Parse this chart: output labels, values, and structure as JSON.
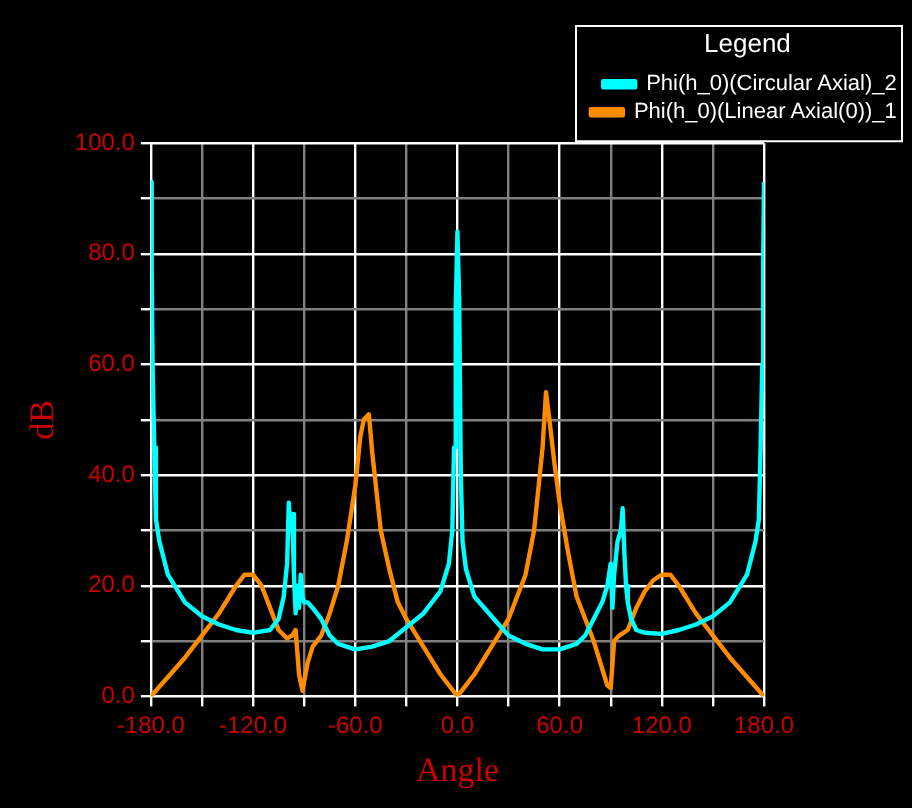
{
  "chart_data": {
    "type": "line",
    "xlabel": "Angle",
    "ylabel": "dB",
    "legend_title": "Legend",
    "legend": "top right",
    "grid": true,
    "marker": "none",
    "line_style": "solid",
    "xlim": [
      -180,
      180
    ],
    "ylim": [
      0,
      100
    ],
    "xticks": [
      {
        "value": -180,
        "label": "-180.0"
      },
      {
        "value": -150,
        "label": null
      },
      {
        "value": -120,
        "label": "-120.0"
      },
      {
        "value": -90,
        "label": null
      },
      {
        "value": -60,
        "label": "-60.0"
      },
      {
        "value": -30,
        "label": null
      },
      {
        "value": 0,
        "label": "0.0"
      },
      {
        "value": 30,
        "label": null
      },
      {
        "value": 60,
        "label": "60.0"
      },
      {
        "value": 90,
        "label": null
      },
      {
        "value": 120,
        "label": "120.0"
      },
      {
        "value": 150,
        "label": null
      },
      {
        "value": 180,
        "label": "180.0"
      }
    ],
    "yticks": [
      {
        "value": 0,
        "label": "0.0"
      },
      {
        "value": 10,
        "label": null
      },
      {
        "value": 20,
        "label": "20.0"
      },
      {
        "value": 30,
        "label": null
      },
      {
        "value": 40,
        "label": "40.0"
      },
      {
        "value": 50,
        "label": null
      },
      {
        "value": 60,
        "label": "60.0"
      },
      {
        "value": 70,
        "label": null
      },
      {
        "value": 80,
        "label": "80.0"
      },
      {
        "value": 90,
        "label": null
      },
      {
        "value": 100,
        "label": "100.0"
      }
    ],
    "series": [
      {
        "name": "Phi(h_0)(Circular Axial)_2",
        "color": "#00ffff",
        "x": [
          -180,
          -179.5,
          -179,
          -178,
          -177,
          -175,
          -170,
          -160,
          -150,
          -140,
          -130,
          -120,
          -110,
          -105,
          -102,
          -100,
          -99,
          -98,
          -97,
          -96,
          -95,
          -94,
          -93,
          -92,
          -91,
          -90,
          -88,
          -85,
          -80,
          -75,
          -70,
          -60,
          -50,
          -40,
          -30,
          -20,
          -10,
          -5,
          -3,
          -2,
          -1,
          0,
          1,
          2,
          3,
          5,
          10,
          20,
          30,
          40,
          50,
          60,
          70,
          75,
          80,
          85,
          88,
          90,
          91,
          92,
          94,
          96,
          97,
          98,
          99,
          100,
          102,
          105,
          110,
          120,
          130,
          140,
          150,
          160,
          170,
          175,
          177,
          178,
          179,
          179.5,
          180
        ],
        "values": [
          93,
          78,
          60,
          45,
          32,
          28,
          22,
          17,
          14.5,
          13,
          12,
          11.5,
          12,
          14,
          18,
          24,
          35,
          30,
          33,
          22,
          15,
          20,
          16,
          22,
          18,
          17,
          17,
          16,
          14,
          11,
          9.5,
          8.5,
          9,
          10,
          12.5,
          15,
          19,
          24,
          30,
          45,
          70,
          84,
          72,
          40,
          28,
          23,
          18,
          14.5,
          11,
          9.5,
          8.5,
          8.5,
          9.5,
          11,
          14,
          17,
          20,
          24,
          16,
          22,
          28,
          30,
          34,
          26,
          20,
          17,
          14,
          12,
          11.5,
          11.3,
          12,
          13,
          14.5,
          17,
          22,
          28,
          32,
          45,
          60,
          78,
          93
        ]
      },
      {
        "name": "Phi(h_0)(Linear Axial(0))_1",
        "color": "#ff8c00",
        "x": [
          -180,
          -160,
          -140,
          -130,
          -125,
          -120,
          -115,
          -110,
          -105,
          -100,
          -97,
          -95,
          -93,
          -91,
          -88,
          -85,
          -80,
          -75,
          -70,
          -65,
          -60,
          -57,
          -55,
          -52,
          -50,
          -45,
          -40,
          -35,
          -30,
          -20,
          -10,
          0,
          10,
          20,
          30,
          40,
          45,
          50,
          52,
          54,
          57,
          60,
          65,
          70,
          80,
          85,
          88,
          90,
          92,
          95,
          100,
          105,
          110,
          115,
          120,
          125,
          130,
          140,
          160,
          180
        ],
        "values": [
          0,
          7,
          15,
          20,
          22,
          22,
          20,
          16,
          12,
          10.5,
          11,
          12,
          4,
          1,
          6,
          9,
          11,
          15,
          20,
          28,
          38,
          47,
          50,
          51,
          44,
          30,
          23,
          17,
          14,
          9,
          4,
          0,
          4,
          9,
          14,
          22,
          30,
          45,
          55,
          50,
          42,
          35,
          26,
          18,
          10,
          5,
          2,
          1.5,
          10,
          11,
          12,
          16,
          19,
          21,
          22,
          22,
          20,
          15,
          7,
          0
        ]
      }
    ]
  }
}
